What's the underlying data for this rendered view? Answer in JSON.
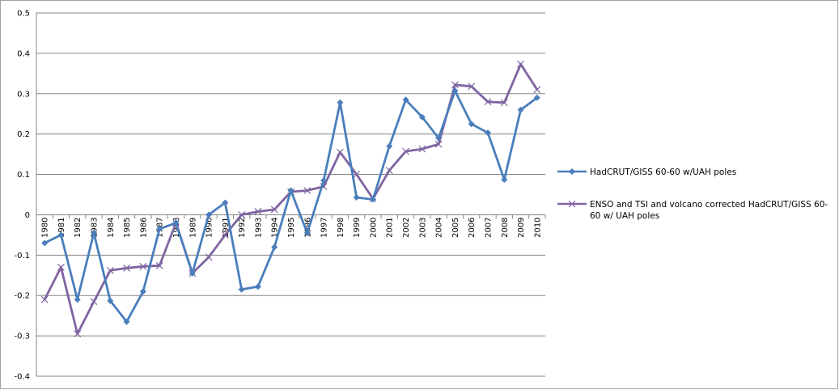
{
  "chart_data": {
    "type": "line",
    "categories": [
      "1980",
      "1981",
      "1982",
      "1983",
      "1984",
      "1985",
      "1986",
      "1987",
      "1988",
      "1989",
      "1990",
      "1991",
      "1992",
      "1993",
      "1994",
      "1995",
      "1996",
      "1997",
      "1998",
      "1999",
      "2000",
      "2001",
      "2002",
      "2003",
      "2004",
      "2005",
      "2006",
      "2007",
      "2008",
      "2009",
      "2010"
    ],
    "ylim": [
      -0.4,
      0.5
    ],
    "yticks": [
      "-0.4",
      "-0.3",
      "-0.2",
      "-0.1",
      "0",
      "0.1",
      "0.2",
      "0.3",
      "0.4",
      "0.5"
    ],
    "ytick_values": [
      -0.4,
      -0.3,
      -0.2,
      -0.1,
      0,
      0.1,
      0.2,
      0.3,
      0.4,
      0.5
    ],
    "grid": true,
    "legend_position": "right",
    "series": [
      {
        "name": "HadCRUT/GISS  60-60 w/UAH  poles",
        "color": "#4a7ebb",
        "marker": "diamond",
        "values": [
          -0.07,
          -0.05,
          -0.21,
          -0.045,
          -0.213,
          -0.265,
          -0.19,
          -0.035,
          -0.02,
          -0.145,
          0.0,
          0.03,
          -0.185,
          -0.178,
          -0.08,
          0.06,
          -0.045,
          0.085,
          0.278,
          0.043,
          0.038,
          0.17,
          0.285,
          0.242,
          0.19,
          0.307,
          0.225,
          0.203,
          0.087,
          0.26,
          0.29
        ]
      },
      {
        "name": "ENSO and TSI and volcano corrected HadCRUT/GISS  60-60 w/ UAH poles",
        "color": "#8064a2",
        "marker": "x",
        "values": [
          -0.21,
          -0.13,
          -0.295,
          -0.215,
          -0.138,
          -0.132,
          -0.128,
          -0.126,
          -0.02,
          -0.145,
          -0.105,
          -0.05,
          0.0,
          0.008,
          0.013,
          0.057,
          0.06,
          0.07,
          0.155,
          0.1,
          0.04,
          0.11,
          0.157,
          0.163,
          0.175,
          0.322,
          0.318,
          0.28,
          0.278,
          0.373,
          0.31
        ]
      }
    ]
  }
}
